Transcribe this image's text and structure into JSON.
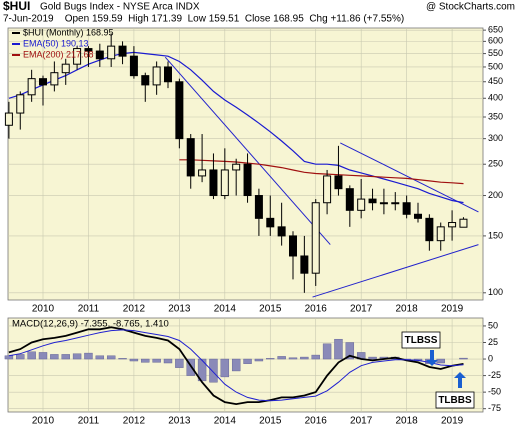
{
  "chart_data": [
    {
      "type": "candlestick",
      "symbol": "$HUI",
      "title": "Gold Bugs Index - NYSE Arca INDX",
      "source": "@ StockCharts.com",
      "subtitle": "7-Jun-2019    Open 159.59  High 171.39  Low 159.51  Close 168.95  Chg +11.86 (+7.55%)",
      "log_scale": true,
      "grid": true,
      "background": "#f7f5d3",
      "x": [
        2009.25,
        2009.5,
        2009.75,
        2010,
        2010.25,
        2010.5,
        2010.75,
        2011,
        2011.25,
        2011.5,
        2011.75,
        2012,
        2012.25,
        2012.5,
        2012.75,
        2013,
        2013.25,
        2013.5,
        2013.75,
        2014,
        2014.25,
        2014.5,
        2014.75,
        2015,
        2015.25,
        2015.5,
        2015.75,
        2016,
        2016.25,
        2016.5,
        2016.75,
        2017,
        2017.25,
        2017.5,
        2017.75,
        2018,
        2018.25,
        2018.5,
        2018.75,
        2019,
        2019.25
      ],
      "open": [
        330,
        360,
        410,
        460,
        440,
        480,
        510,
        570,
        560,
        530,
        580,
        540,
        470,
        440,
        500,
        450,
        300,
        230,
        240,
        200,
        240,
        250,
        200,
        170,
        160,
        150,
        130,
        115,
        190,
        230,
        210,
        180,
        195,
        190,
        190,
        190,
        175,
        170,
        145,
        160,
        159.59
      ],
      "high": [
        390,
        420,
        490,
        470,
        520,
        530,
        580,
        580,
        590,
        635,
        600,
        580,
        480,
        520,
        520,
        460,
        310,
        310,
        270,
        280,
        260,
        270,
        210,
        200,
        190,
        155,
        150,
        195,
        240,
        285,
        215,
        225,
        210,
        210,
        205,
        200,
        190,
        175,
        165,
        180,
        171.39
      ],
      "low": [
        300,
        320,
        390,
        380,
        420,
        440,
        490,
        500,
        500,
        500,
        510,
        460,
        390,
        410,
        430,
        280,
        210,
        220,
        195,
        195,
        200,
        190,
        150,
        150,
        140,
        110,
        100,
        105,
        175,
        200,
        160,
        170,
        180,
        175,
        180,
        170,
        165,
        135,
        135,
        145,
        159.51
      ],
      "close": [
        360,
        410,
        460,
        440,
        480,
        510,
        570,
        560,
        530,
        580,
        540,
        470,
        440,
        500,
        450,
        300,
        230,
        240,
        200,
        240,
        250,
        200,
        170,
        160,
        150,
        130,
        115,
        190,
        230,
        210,
        180,
        195,
        190,
        190,
        190,
        175,
        170,
        145,
        160,
        165,
        168.95
      ],
      "candle_color": "#000000",
      "series": [
        {
          "name": "$HUI (Monthly) 168.95",
          "color": "#000000"
        },
        {
          "name": "EMA(50) 190.13",
          "color": "#1a1ad0",
          "values": [
            400,
            410,
            425,
            440,
            455,
            470,
            490,
            510,
            525,
            540,
            550,
            555,
            550,
            545,
            540,
            520,
            490,
            455,
            420,
            395,
            375,
            355,
            335,
            315,
            295,
            275,
            255,
            250,
            250,
            248,
            240,
            235,
            230,
            225,
            220,
            215,
            210,
            203,
            198,
            193,
            190.13
          ]
        },
        {
          "name": "EMA(200) 217.68",
          "color": "#a01010",
          "values": [
            null,
            null,
            null,
            null,
            null,
            null,
            null,
            null,
            null,
            null,
            null,
            null,
            null,
            null,
            null,
            258,
            258,
            257,
            256,
            255,
            254,
            252,
            250,
            247,
            244,
            240,
            236,
            234,
            233,
            232,
            231,
            230,
            229,
            228,
            227,
            226,
            224,
            222,
            220,
            219,
            217.68
          ]
        }
      ],
      "trendlines": [
        {
          "x": [
            2012.69,
            2016.32
          ],
          "y": [
            536,
            141
          ]
        },
        {
          "x": [
            2016.54,
            2019.58
          ],
          "y": [
            291,
            178
          ]
        },
        {
          "x": [
            2015.93,
            2019.58
          ],
          "y": [
            97,
            141
          ]
        }
      ],
      "xlim": [
        2009.23,
        2019.68
      ],
      "xticks": [
        2010,
        2011,
        2012,
        2013,
        2014,
        2015,
        2016,
        2017,
        2018,
        2019
      ],
      "ylim": [
        95,
        660
      ],
      "yticks": [
        650,
        600,
        550,
        500,
        450,
        400,
        350,
        300,
        250,
        200,
        150,
        100
      ]
    },
    {
      "type": "macd",
      "title": "MACD(12,26,9) -7.355, -8.765, 1.410",
      "grid": true,
      "background": "#f7f5d3",
      "x": [
        2009.25,
        2009.5,
        2009.75,
        2010,
        2010.25,
        2010.5,
        2010.75,
        2011,
        2011.25,
        2011.5,
        2011.75,
        2012,
        2012.25,
        2012.5,
        2012.75,
        2013,
        2013.25,
        2013.5,
        2013.75,
        2014,
        2014.25,
        2014.5,
        2014.75,
        2015,
        2015.25,
        2015.5,
        2015.75,
        2016,
        2016.25,
        2016.5,
        2016.75,
        2017,
        2017.25,
        2017.5,
        2017.75,
        2018,
        2018.25,
        2018.5,
        2018.75,
        2019,
        2019.25
      ],
      "series": [
        {
          "name": "MACD",
          "color": "#000000",
          "values": [
            10,
            15,
            25,
            30,
            32,
            35,
            40,
            45,
            45,
            48,
            45,
            40,
            35,
            32,
            28,
            15,
            -10,
            -35,
            -55,
            -65,
            -68,
            -65,
            -65,
            -62,
            -58,
            -58,
            -55,
            -50,
            -25,
            -5,
            5,
            0,
            -2,
            0,
            2,
            -2,
            -5,
            -12,
            -15,
            -10,
            -7.355
          ]
        },
        {
          "name": "Signal",
          "color": "#2020d0",
          "values": [
            5,
            8,
            14,
            20,
            25,
            28,
            32,
            36,
            40,
            43,
            44,
            43,
            40,
            37,
            34,
            28,
            15,
            -2,
            -20,
            -38,
            -50,
            -58,
            -62,
            -63,
            -62,
            -60,
            -58,
            -56,
            -48,
            -35,
            -20,
            -10,
            -5,
            -3,
            -1,
            -1,
            -2,
            -5,
            -9,
            -10,
            -8.765
          ]
        },
        {
          "name": "Histogram",
          "color": "#8a8ab8",
          "values": [
            5,
            7,
            11,
            10,
            7,
            7,
            8,
            9,
            5,
            5,
            1,
            -3,
            -5,
            -5,
            -6,
            -13,
            -25,
            -33,
            -35,
            -27,
            -18,
            -7,
            -3,
            1,
            4,
            2,
            3,
            6,
            23,
            30,
            25,
            10,
            3,
            3,
            3,
            -1,
            -3,
            -7,
            -6,
            0,
            1.41
          ]
        }
      ],
      "annotations": [
        "TLBSS",
        "TLBBS"
      ],
      "xlim": [
        2009.23,
        2019.68
      ],
      "xticks": [
        2010,
        2011,
        2012,
        2013,
        2014,
        2015,
        2016,
        2017,
        2018,
        2019
      ],
      "ylim": [
        -80,
        62
      ],
      "yticks": [
        50,
        25,
        0,
        -25,
        -50,
        -75
      ]
    }
  ]
}
